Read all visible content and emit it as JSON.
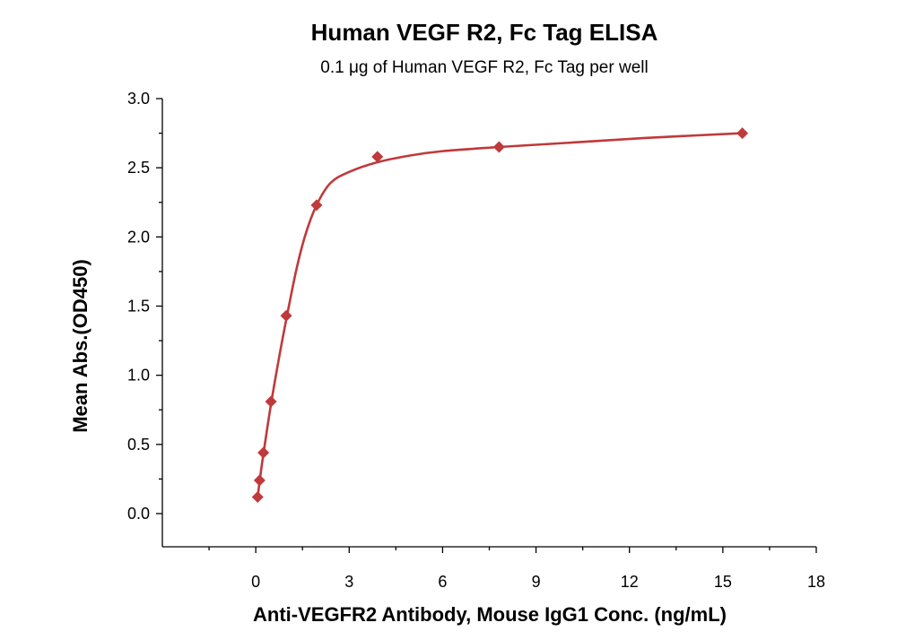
{
  "chart_data": {
    "type": "scatter",
    "title": "Human VEGF R2, Fc Tag ELISA",
    "subtitle": "0.1 μg of Human VEGF R2, Fc Tag per well",
    "xlabel": "Anti-VEGFR2 Antibody, Mouse IgG1 Conc. (ng/mL)",
    "ylabel": "Mean Abs.(OD450)",
    "xlim": [
      -3,
      18
    ],
    "ylim": [
      -0.24,
      3.0
    ],
    "xticks": [
      0,
      3,
      6,
      9,
      12,
      15,
      18
    ],
    "yticks": [
      0.0,
      0.5,
      1.0,
      1.5,
      2.0,
      2.5,
      3.0
    ],
    "xtick_labels": [
      "0",
      "3",
      "6",
      "9",
      "12",
      "15",
      "18"
    ],
    "ytick_labels": [
      "0.0",
      "0.5",
      "1.0",
      "1.5",
      "2.0",
      "2.5",
      "3.0"
    ],
    "grid": false,
    "marker": "diamond",
    "color": "#c0393b",
    "series": [
      {
        "x": [
          0.061,
          0.122,
          0.244,
          0.488,
          0.977,
          1.953,
          3.906,
          7.813,
          15.625
        ],
        "y": [
          0.12,
          0.24,
          0.44,
          0.81,
          1.43,
          2.23,
          2.58,
          2.65,
          2.75
        ]
      }
    ],
    "fit_curve": {
      "x": [
        0.061,
        0.122,
        0.244,
        0.488,
        0.75,
        0.977,
        1.3,
        1.6,
        1.953,
        2.4,
        3.0,
        3.906,
        5.0,
        6.0,
        7.813,
        10.0,
        12.5,
        15.625
      ],
      "y": [
        0.12,
        0.23,
        0.43,
        0.79,
        1.13,
        1.4,
        1.76,
        2.02,
        2.23,
        2.39,
        2.47,
        2.54,
        2.59,
        2.62,
        2.65,
        2.68,
        2.715,
        2.75
      ]
    }
  }
}
